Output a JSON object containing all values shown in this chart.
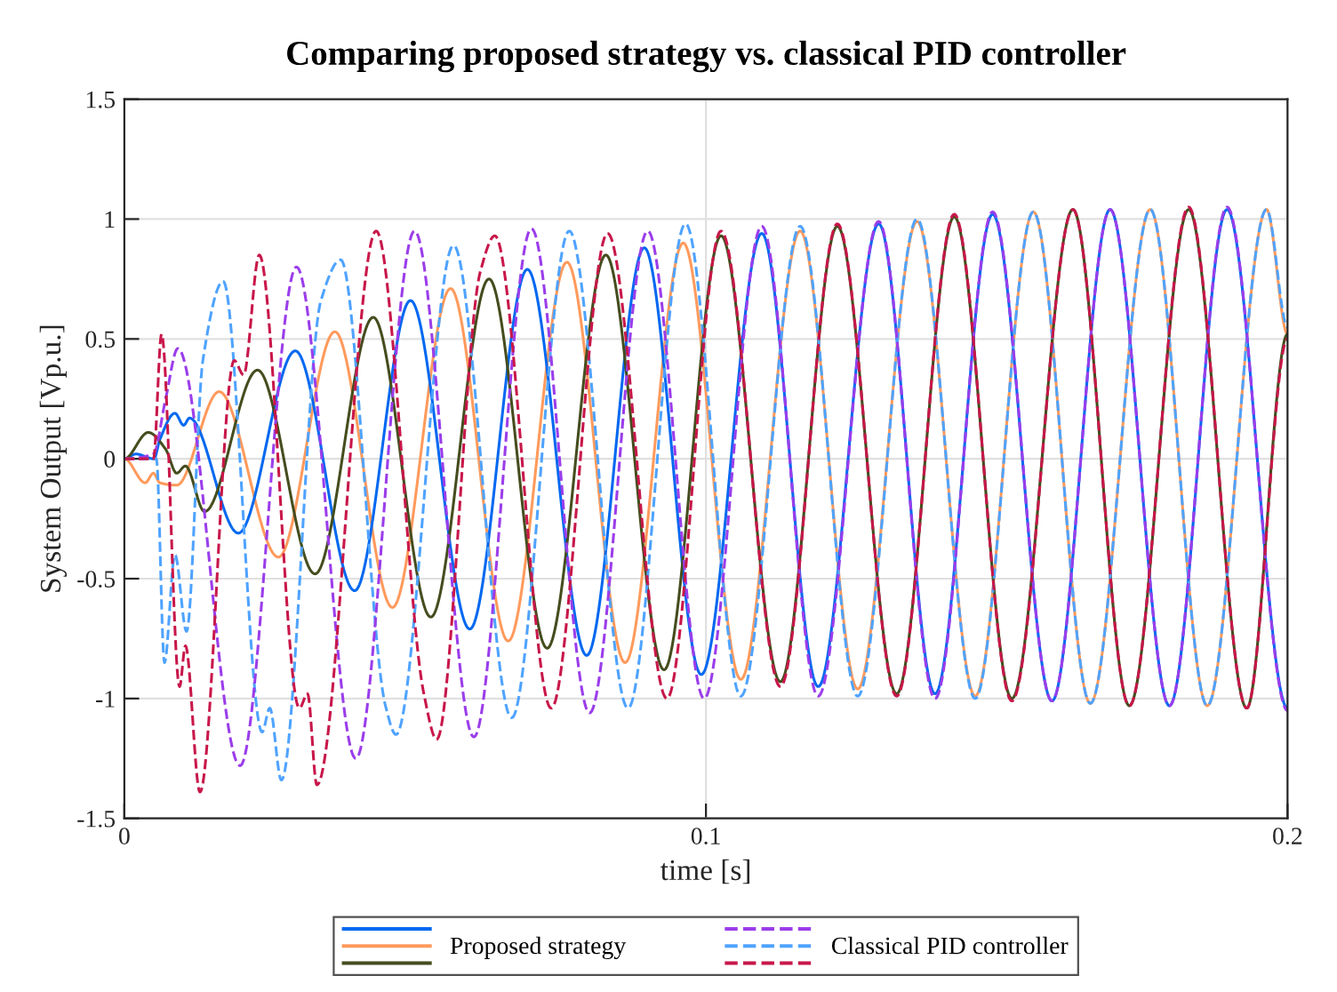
{
  "chart_data": {
    "type": "line",
    "title": "Comparing proposed strategy vs. classical PID controller",
    "xlabel": "time [s]",
    "ylabel": "System Output [Vp.u.]",
    "xlim": [
      0,
      0.2
    ],
    "xticks": [
      0,
      0.1,
      0.2
    ],
    "ylim": [
      -1.5,
      1.5
    ],
    "yticks": [
      -1.5,
      -1,
      -0.5,
      0,
      0.5,
      1,
      1.5
    ],
    "grid": true,
    "legend": "bottom",
    "marker": "none",
    "series": [
      {
        "name": "Proposed strategy",
        "color": "#ff9a5c",
        "line_style": "solid",
        "x": [
          0,
          0.0036,
          0.005,
          0.0061,
          0.009,
          0.0163,
          0.0265,
          0.0362,
          0.0461,
          0.0561,
          0.066,
          0.0761,
          0.0861,
          0.0961,
          0.106,
          0.1162,
          0.1261,
          0.1363,
          0.1463,
          0.1563,
          0.1661,
          0.1764,
          0.1862,
          0.1964,
          0.2
        ],
        "values": [
          0,
          -0.1,
          -0.06,
          -0.1,
          -0.11,
          0.28,
          -0.41,
          0.53,
          -0.62,
          0.71,
          -0.76,
          0.82,
          -0.85,
          0.9,
          -0.92,
          0.95,
          -0.96,
          0.99,
          -0.99,
          1.03,
          -1.02,
          1.04,
          -1.03,
          1.04,
          0.52
        ]
      },
      {
        "color": "#0068f0",
        "line_style": "solid",
        "x": [
          0,
          0.002,
          0.0051,
          0.0061,
          0.0087,
          0.0102,
          0.0112,
          0.0196,
          0.0294,
          0.0396,
          0.0492,
          0.0594,
          0.0693,
          0.0795,
          0.0894,
          0.0992,
          0.1096,
          0.1193,
          0.1297,
          0.1394,
          0.1493,
          0.1595,
          0.1695,
          0.1797,
          0.1896,
          0.2
        ],
        "values": [
          0,
          0.02,
          0.0,
          0.08,
          0.19,
          0.14,
          0.17,
          -0.31,
          0.45,
          -0.55,
          0.66,
          -0.71,
          0.79,
          -0.82,
          0.88,
          -0.9,
          0.94,
          -0.95,
          0.98,
          -0.98,
          1.02,
          -1.01,
          1.04,
          -1.03,
          1.04,
          -1.04
        ]
      },
      {
        "color": "#454d1e",
        "line_style": "solid",
        "x": [
          0,
          0.0041,
          0.0071,
          0.009,
          0.0105,
          0.0138,
          0.0229,
          0.0328,
          0.0428,
          0.0527,
          0.0627,
          0.0727,
          0.0828,
          0.0928,
          0.1026,
          0.1128,
          0.1226,
          0.1328,
          0.1427,
          0.1526,
          0.1631,
          0.1728,
          0.183,
          0.193,
          0.2
        ],
        "values": [
          0,
          0.11,
          0.04,
          -0.06,
          -0.03,
          -0.22,
          0.37,
          -0.48,
          0.59,
          -0.66,
          0.75,
          -0.79,
          0.85,
          -0.88,
          0.93,
          -0.93,
          0.97,
          -0.98,
          1.01,
          -1.0,
          1.04,
          -1.03,
          1.04,
          -1.04,
          0.52
        ]
      },
      {
        "name": "Classical PID controller",
        "color": "#4fa3ff",
        "line_style": "dashed",
        "x": [
          0,
          0.0055,
          0.0069,
          0.0087,
          0.0107,
          0.0135,
          0.017,
          0.0237,
          0.025,
          0.027,
          0.0338,
          0.0372,
          0.0449,
          0.0467,
          0.0566,
          0.0666,
          0.0765,
          0.0866,
          0.0965,
          0.106,
          0.1162,
          0.1261,
          0.1363,
          0.1463,
          0.1563,
          0.1661,
          0.1764,
          0.1862,
          0.1964,
          0.2
        ],
        "values": [
          0,
          0.0,
          -0.85,
          -0.4,
          -0.72,
          0.41,
          0.74,
          -1.14,
          -1.04,
          -1.34,
          0.66,
          0.83,
          -1.03,
          -1.15,
          0.89,
          -1.08,
          0.95,
          -1.04,
          0.98,
          -0.99,
          0.97,
          -0.99,
          1.0,
          -1.0,
          1.03,
          -1.02,
          1.04,
          -1.03,
          1.04,
          0.55
        ]
      },
      {
        "color": "#9b3dea",
        "line_style": "dashed",
        "x": [
          0,
          0.005,
          0.0071,
          0.0092,
          0.0199,
          0.0296,
          0.0398,
          0.0499,
          0.0601,
          0.07,
          0.08,
          0.09,
          0.0997,
          0.1096,
          0.1193,
          0.1297,
          0.1394,
          0.1493,
          0.1595,
          0.1695,
          0.1797,
          0.1896,
          0.2
        ],
        "values": [
          0,
          0.02,
          0.25,
          0.46,
          -1.28,
          0.8,
          -1.25,
          0.95,
          -1.16,
          0.96,
          -1.06,
          0.95,
          -1.0,
          0.97,
          -0.99,
          0.99,
          -1.0,
          1.03,
          -1.01,
          1.04,
          -1.03,
          1.05,
          -1.05
        ]
      },
      {
        "color": "#c8174a",
        "line_style": "dashed",
        "x": [
          0,
          0.005,
          0.0064,
          0.0095,
          0.0105,
          0.013,
          0.0189,
          0.0205,
          0.0232,
          0.0301,
          0.0315,
          0.0331,
          0.0433,
          0.0515,
          0.0537,
          0.0612,
          0.0637,
          0.0734,
          0.0831,
          0.0933,
          0.1026,
          0.1128,
          0.1226,
          0.1328,
          0.1427,
          0.1526,
          0.1631,
          0.1728,
          0.183,
          0.193,
          0.2
        ],
        "values": [
          0,
          0.0,
          0.52,
          -0.95,
          -0.78,
          -1.39,
          0.41,
          0.35,
          0.85,
          -1.04,
          -0.98,
          -1.36,
          0.95,
          -0.98,
          -1.17,
          0.78,
          0.93,
          -1.04,
          0.94,
          -1.0,
          0.95,
          -0.95,
          0.98,
          -0.99,
          1.02,
          -1.01,
          1.04,
          -1.03,
          1.05,
          -1.04,
          0.5
        ]
      }
    ]
  }
}
